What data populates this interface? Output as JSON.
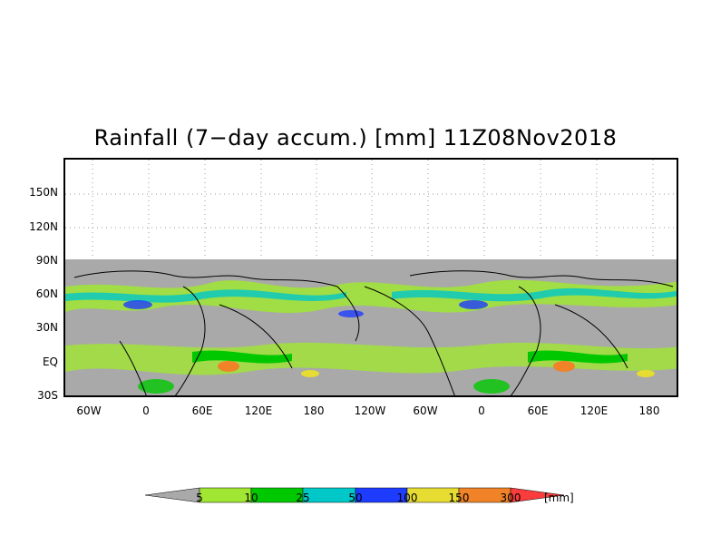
{
  "title": "Rainfall (7−day accum.) [mm] 11Z08Nov2018",
  "y_axis_labels": [
    "150N",
    "120N",
    "90N",
    "60N",
    "30N",
    "EQ",
    "30S"
  ],
  "x_axis_labels": [
    "60W",
    "0",
    "60E",
    "120E",
    "180",
    "120W",
    "60W",
    "0",
    "60E",
    "120E",
    "180"
  ],
  "legend": {
    "values": [
      "5",
      "10",
      "25",
      "50",
      "100",
      "150",
      "300"
    ],
    "unit": "[mm]",
    "colors": [
      "#a9a9a9",
      "#a0e632",
      "#00c800",
      "#00c8c8",
      "#1e3cff",
      "#e6dc32",
      "#f08228",
      "#fa3c3c"
    ]
  },
  "map": {
    "no_data_color": "#a9a9a9",
    "coastline_color": "#000000"
  }
}
